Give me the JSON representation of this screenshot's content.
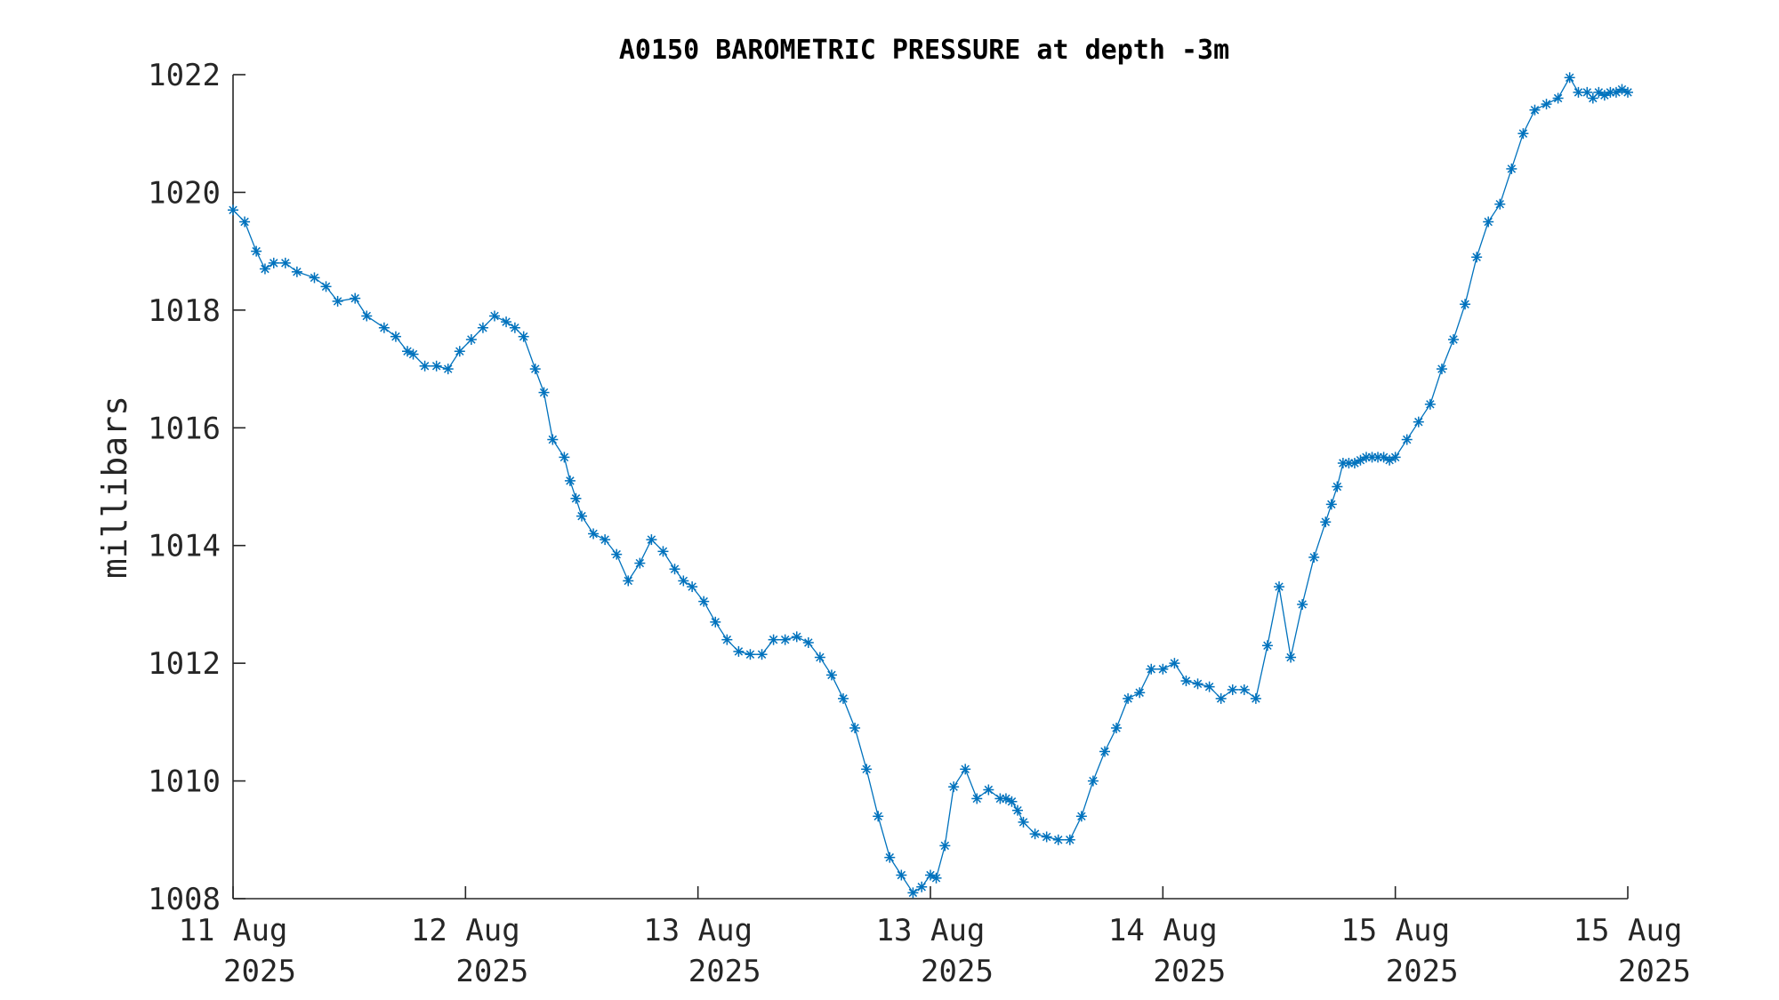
{
  "chart_data": {
    "type": "line",
    "title": "A0150 BAROMETRIC PRESSURE at depth -3m",
    "xlabel": "",
    "ylabel": "millibars",
    "xlim": [
      0,
      4.8
    ],
    "ylim": [
      1008,
      1022
    ],
    "yticks": [
      1008,
      1010,
      1012,
      1014,
      1016,
      1018,
      1020,
      1022
    ],
    "xticks": [
      {
        "value": 0.0,
        "line1": "11 Aug",
        "line2": "2025"
      },
      {
        "value": 0.8,
        "line1": "12 Aug",
        "line2": "2025"
      },
      {
        "value": 1.6,
        "line1": "13 Aug",
        "line2": "2025"
      },
      {
        "value": 2.4,
        "line1": "13 Aug",
        "line2": "2025"
      },
      {
        "value": 3.2,
        "line1": "14 Aug",
        "line2": "2025"
      },
      {
        "value": 4.0,
        "line1": "15 Aug",
        "line2": "2025"
      },
      {
        "value": 4.8,
        "line1": "15 Aug",
        "line2": "2025"
      }
    ],
    "grid": false,
    "marker": "asterisk",
    "color": "#0072BD",
    "series": [
      {
        "x": [
          0.0,
          0.04,
          0.08,
          0.11,
          0.14,
          0.18,
          0.22,
          0.28,
          0.32,
          0.36,
          0.42,
          0.46,
          0.52,
          0.56,
          0.6,
          0.62,
          0.66,
          0.7,
          0.74,
          0.78,
          0.82,
          0.86,
          0.9,
          0.94,
          0.97,
          1.0,
          1.04,
          1.07,
          1.1,
          1.14,
          1.16,
          1.18,
          1.2,
          1.24,
          1.28,
          1.32,
          1.36,
          1.4,
          1.44,
          1.48,
          1.52,
          1.55,
          1.58,
          1.62,
          1.66,
          1.7,
          1.74,
          1.78,
          1.82,
          1.86,
          1.9,
          1.94,
          1.98,
          2.02,
          2.06,
          2.1,
          2.14,
          2.18,
          2.22,
          2.26,
          2.3,
          2.34,
          2.37,
          2.4,
          2.42,
          2.45,
          2.48,
          2.52,
          2.56,
          2.6,
          2.64,
          2.66,
          2.68,
          2.7,
          2.72,
          2.76,
          2.8,
          2.84,
          2.88,
          2.92,
          2.96,
          3.0,
          3.04,
          3.08,
          3.12,
          3.16,
          3.2,
          3.24,
          3.28,
          3.32,
          3.36,
          3.4,
          3.44,
          3.48,
          3.52,
          3.56,
          3.6,
          3.64,
          3.68,
          3.72,
          3.76,
          3.78,
          3.8,
          3.82,
          3.84,
          3.86,
          3.88,
          3.9,
          3.92,
          3.94,
          3.96,
          3.98,
          4.0,
          4.04,
          4.08,
          4.12,
          4.16,
          4.2,
          4.24,
          4.28,
          4.32,
          4.36,
          4.4,
          4.44,
          4.48,
          4.52,
          4.56,
          4.6,
          4.63,
          4.66,
          4.68,
          4.7,
          4.72,
          4.74,
          4.76,
          4.78,
          4.8
        ],
        "y": [
          1019.7,
          1019.5,
          1019.0,
          1018.7,
          1018.8,
          1018.8,
          1018.65,
          1018.55,
          1018.4,
          1018.15,
          1018.2,
          1017.9,
          1017.7,
          1017.55,
          1017.3,
          1017.25,
          1017.05,
          1017.05,
          1017.0,
          1017.3,
          1017.5,
          1017.7,
          1017.9,
          1017.8,
          1017.7,
          1017.55,
          1017.0,
          1016.6,
          1015.8,
          1015.5,
          1015.1,
          1014.8,
          1014.5,
          1014.2,
          1014.1,
          1013.85,
          1013.4,
          1013.7,
          1014.1,
          1013.9,
          1013.6,
          1013.4,
          1013.3,
          1013.05,
          1012.7,
          1012.4,
          1012.2,
          1012.15,
          1012.15,
          1012.4,
          1012.4,
          1012.45,
          1012.35,
          1012.1,
          1011.8,
          1011.4,
          1010.9,
          1010.2,
          1009.4,
          1008.7,
          1008.4,
          1008.1,
          1008.2,
          1008.4,
          1008.35,
          1008.9,
          1009.9,
          1010.2,
          1009.7,
          1009.85,
          1009.7,
          1009.7,
          1009.65,
          1009.5,
          1009.3,
          1009.1,
          1009.05,
          1009.0,
          1009.0,
          1009.4,
          1010.0,
          1010.5,
          1010.9,
          1011.4,
          1011.5,
          1011.9,
          1011.9,
          1012.0,
          1011.7,
          1011.65,
          1011.6,
          1011.4,
          1011.55,
          1011.55,
          1011.4,
          1012.3,
          1013.3,
          1012.1,
          1013.0,
          1013.8,
          1014.4,
          1014.7,
          1015.0,
          1015.4,
          1015.4,
          1015.4,
          1015.45,
          1015.5,
          1015.5,
          1015.5,
          1015.5,
          1015.45,
          1015.5,
          1015.8,
          1016.1,
          1016.4,
          1017.0,
          1017.5,
          1018.1,
          1018.9,
          1019.5,
          1019.8,
          1020.4,
          1021.0,
          1021.4,
          1021.5,
          1021.6,
          1021.95,
          1021.7,
          1021.7,
          1021.6,
          1021.7,
          1021.65,
          1021.7,
          1021.7,
          1021.75,
          1021.7
        ]
      }
    ]
  }
}
